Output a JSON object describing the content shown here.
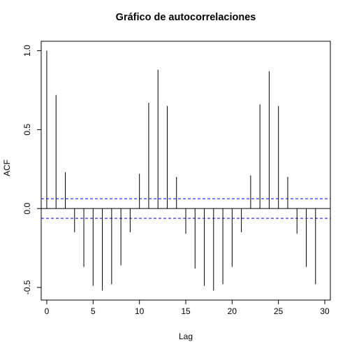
{
  "chart_data": {
    "type": "bar",
    "title": "Gráfico de autocorrelaciones",
    "xlabel": "Lag",
    "ylabel": "ACF",
    "x_ticks": [
      "0",
      "5",
      "10",
      "15",
      "20",
      "25",
      "30"
    ],
    "y_ticks": [
      "-0.5",
      "0.0",
      "0.5",
      "1.0"
    ],
    "xlim": [
      -0.6,
      30.6
    ],
    "ylim": [
      -0.58,
      1.06
    ],
    "confidence_band": 0.062,
    "confidence_color": "#0000ff",
    "bar_color": "#000000",
    "x": [
      0,
      1,
      2,
      3,
      4,
      5,
      6,
      7,
      8,
      9,
      10,
      11,
      12,
      13,
      14,
      15,
      16,
      17,
      18,
      19,
      20,
      21,
      22,
      23,
      24,
      25,
      26,
      27,
      28,
      29
    ],
    "values": [
      1.0,
      0.72,
      0.23,
      -0.15,
      -0.37,
      -0.49,
      -0.52,
      -0.48,
      -0.36,
      -0.15,
      0.22,
      0.67,
      0.88,
      0.65,
      0.2,
      -0.16,
      -0.38,
      -0.49,
      -0.52,
      -0.48,
      -0.37,
      -0.15,
      0.21,
      0.66,
      0.87,
      0.65,
      0.2,
      -0.16,
      -0.37,
      -0.48
    ]
  }
}
